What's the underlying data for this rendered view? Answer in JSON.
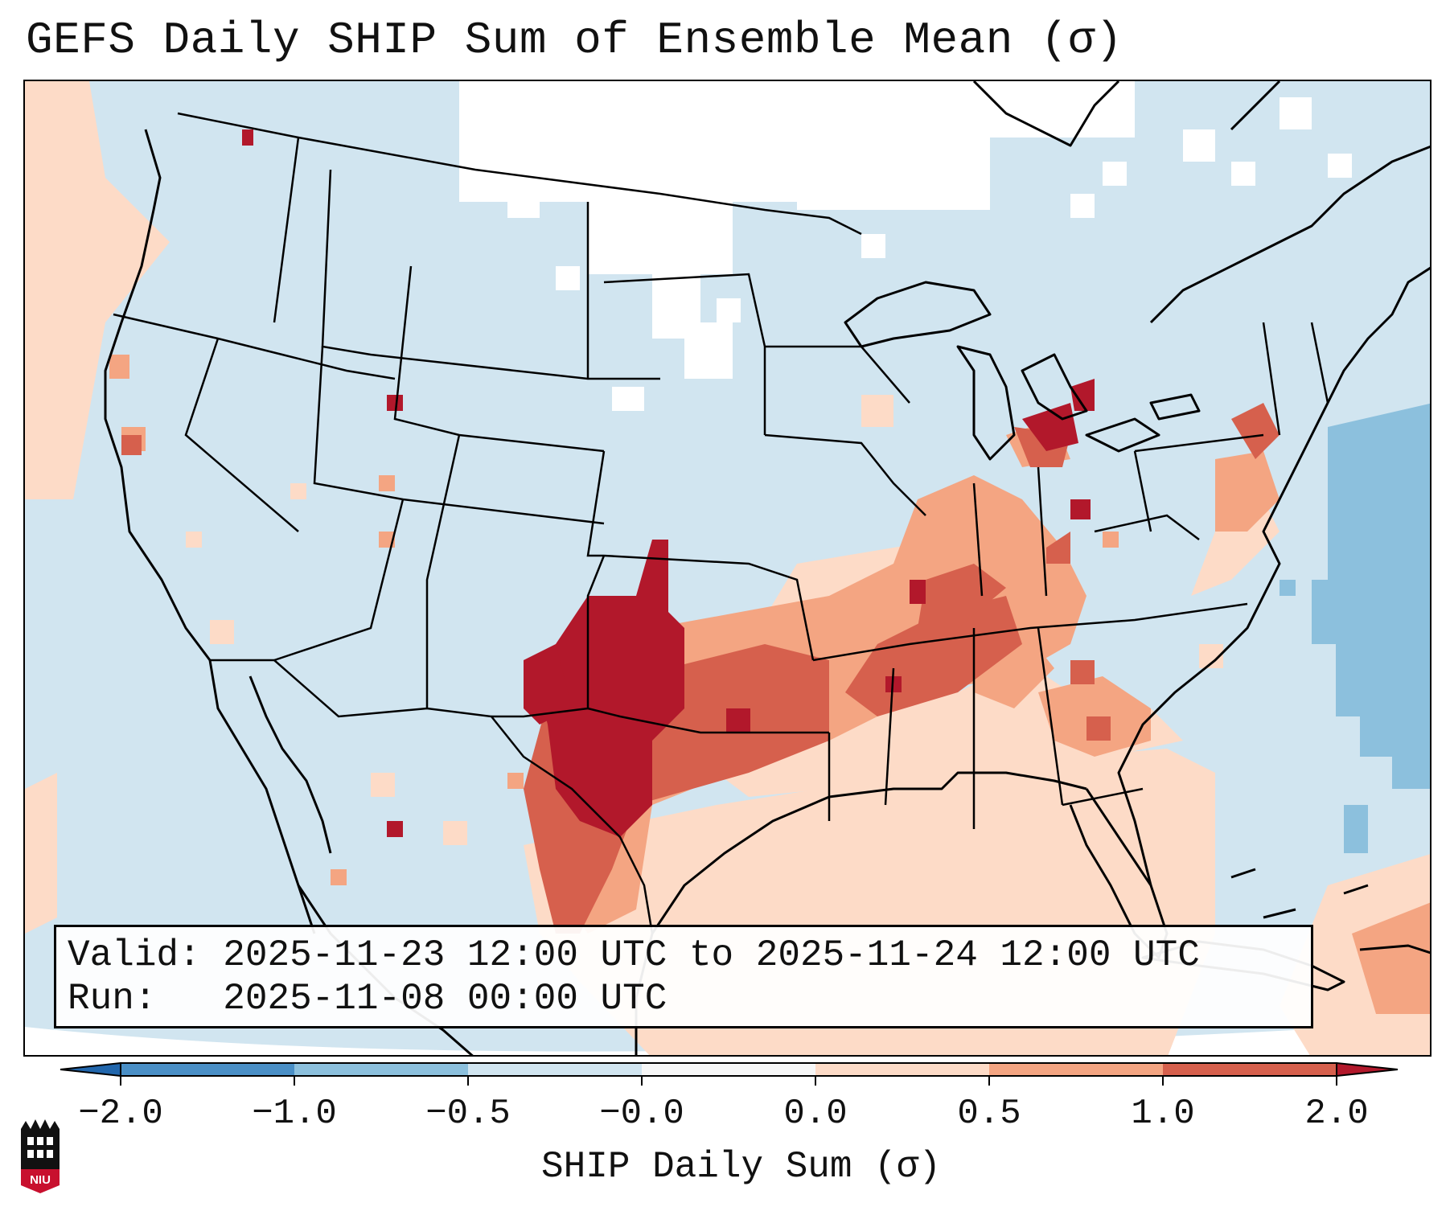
{
  "title": "GEFS Daily SHIP Sum of Ensemble Mean (σ)",
  "info": {
    "valid_label": "Valid:",
    "valid_value": "2025-11-23 12:00 UTC to 2025-11-24 12:00 UTC",
    "run_label": "Run:",
    "run_value": "2025-11-08 00:00 UTC"
  },
  "colorbar": {
    "label": "SHIP Daily Sum (σ)",
    "ticks": [
      "−2.0",
      "−1.0",
      "−0.5",
      "−0.0",
      "0.0",
      "0.5",
      "1.0",
      "2.0"
    ],
    "colors": [
      "#4a8fc6",
      "#8cc0dd",
      "#cfe3ef",
      "#f4f4f4",
      "#fddbc7",
      "#f4a582",
      "#d6604d",
      "#b2182b"
    ]
  },
  "legend_categories": [
    {
      "range": "< -2.0",
      "color": "#2166ac"
    },
    {
      "range": "-2.0 to -1.0",
      "color": "#4a8fc6"
    },
    {
      "range": "-1.0 to -0.5",
      "color": "#8cc0dd"
    },
    {
      "range": "-0.5 to -0.0",
      "color": "#d1e5f0"
    },
    {
      "range": "0.0 to 0.5",
      "color": "#fddbc7"
    },
    {
      "range": "0.5 to 1.0",
      "color": "#f4a582"
    },
    {
      "range": "1.0 to 2.0",
      "color": "#d6604d"
    },
    {
      "range": "> 2.0",
      "color": "#b2182b"
    }
  ],
  "logo": {
    "text": "NIU",
    "icon": "niu-logo-icon",
    "color": "#c8102e"
  }
}
